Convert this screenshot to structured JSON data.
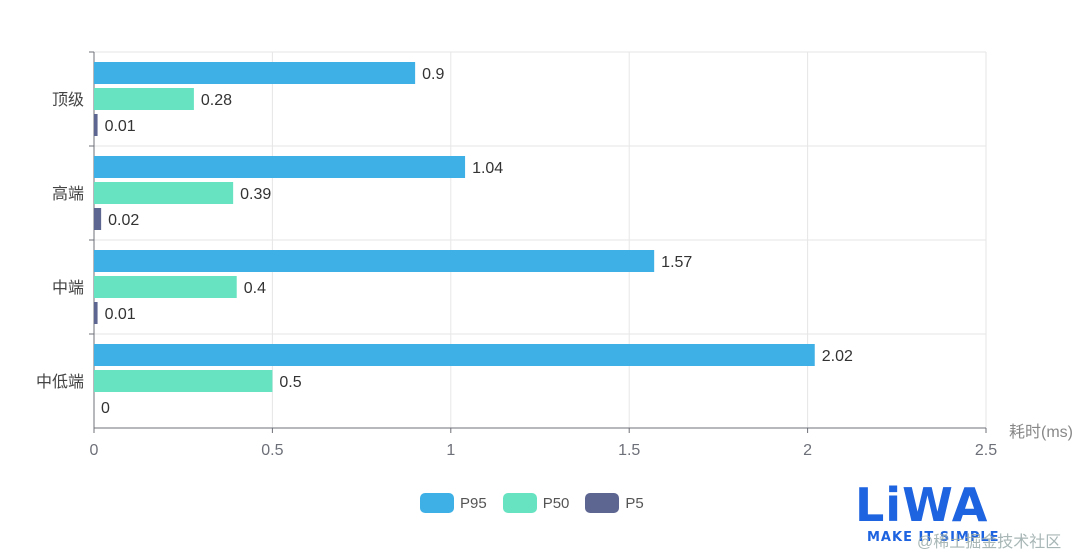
{
  "chart_data": {
    "type": "bar",
    "orientation": "horizontal",
    "categories": [
      "顶级",
      "高端",
      "中端",
      "中低端"
    ],
    "series": [
      {
        "name": "P95",
        "color": "#3eb0e6",
        "values": [
          0.9,
          1.04,
          1.57,
          2.02
        ],
        "labels": [
          "0.9",
          "1.04",
          "1.57",
          "2.02"
        ]
      },
      {
        "name": "P50",
        "color": "#67e3c2",
        "values": [
          0.28,
          0.39,
          0.4,
          0.5
        ],
        "labels": [
          "0.28",
          "0.39",
          "0.4",
          "0.5"
        ]
      },
      {
        "name": "P5",
        "color": "#5d6591",
        "values": [
          0.01,
          0.02,
          0.01,
          0
        ],
        "labels": [
          "0.01",
          "0.02",
          "0.01",
          "0"
        ]
      }
    ],
    "xlabel": "耗时(ms)",
    "xlim": [
      0,
      2.5
    ],
    "xticks": [
      "0",
      "0.5",
      "1",
      "1.5",
      "2",
      "2.5"
    ],
    "grid": true,
    "legend_position": "bottom"
  },
  "watermark": {
    "logo": "LiWA",
    "tagline": "MAKE IT SIMPLE",
    "overlay": "@稀土掘金技术社区"
  }
}
